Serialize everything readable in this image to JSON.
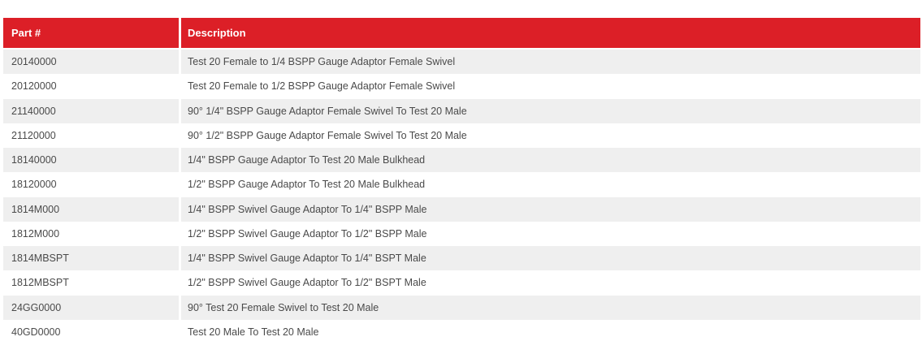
{
  "table": {
    "headers": {
      "part": "Part #",
      "description": "Description"
    },
    "rows": [
      {
        "part": "20140000",
        "description": "Test 20 Female to 1/4 BSPP Gauge Adaptor Female Swivel"
      },
      {
        "part": "20120000",
        "description": "Test 20 Female to 1/2 BSPP Gauge Adaptor Female Swivel"
      },
      {
        "part": "21140000",
        "description": "90° 1/4\" BSPP Gauge Adaptor Female Swivel To Test 20 Male"
      },
      {
        "part": "21120000",
        "description": "90° 1/2\" BSPP Gauge Adaptor Female Swivel To Test 20 Male"
      },
      {
        "part": "18140000",
        "description": "1/4\" BSPP Gauge Adaptor To Test 20 Male Bulkhead"
      },
      {
        "part": "18120000",
        "description": "1/2\" BSPP Gauge Adaptor To Test 20 Male Bulkhead"
      },
      {
        "part": "1814M000",
        "description": "1/4\" BSPP Swivel Gauge Adaptor To 1/4\" BSPP Male"
      },
      {
        "part": "1812M000",
        "description": "1/2\" BSPP Swivel Gauge Adaptor To 1/2\" BSPP Male"
      },
      {
        "part": "1814MBSPT",
        "description": "1/4\" BSPP Swivel Gauge Adaptor To 1/4\" BSPT Male"
      },
      {
        "part": "1812MBSPT",
        "description": "1/2\" BSPP Swivel Gauge Adaptor To 1/2\" BSPT Male"
      },
      {
        "part": "24GG0000",
        "description": "90° Test 20 Female Swivel to Test 20 Male"
      },
      {
        "part": "40GD0000",
        "description": "Test 20 Male To Test 20 Male"
      }
    ]
  },
  "colors": {
    "header_background": "#dc1f27",
    "header_text": "#ffffff",
    "row_stripe": "#efefef",
    "row_text": "#4a4a4a"
  }
}
